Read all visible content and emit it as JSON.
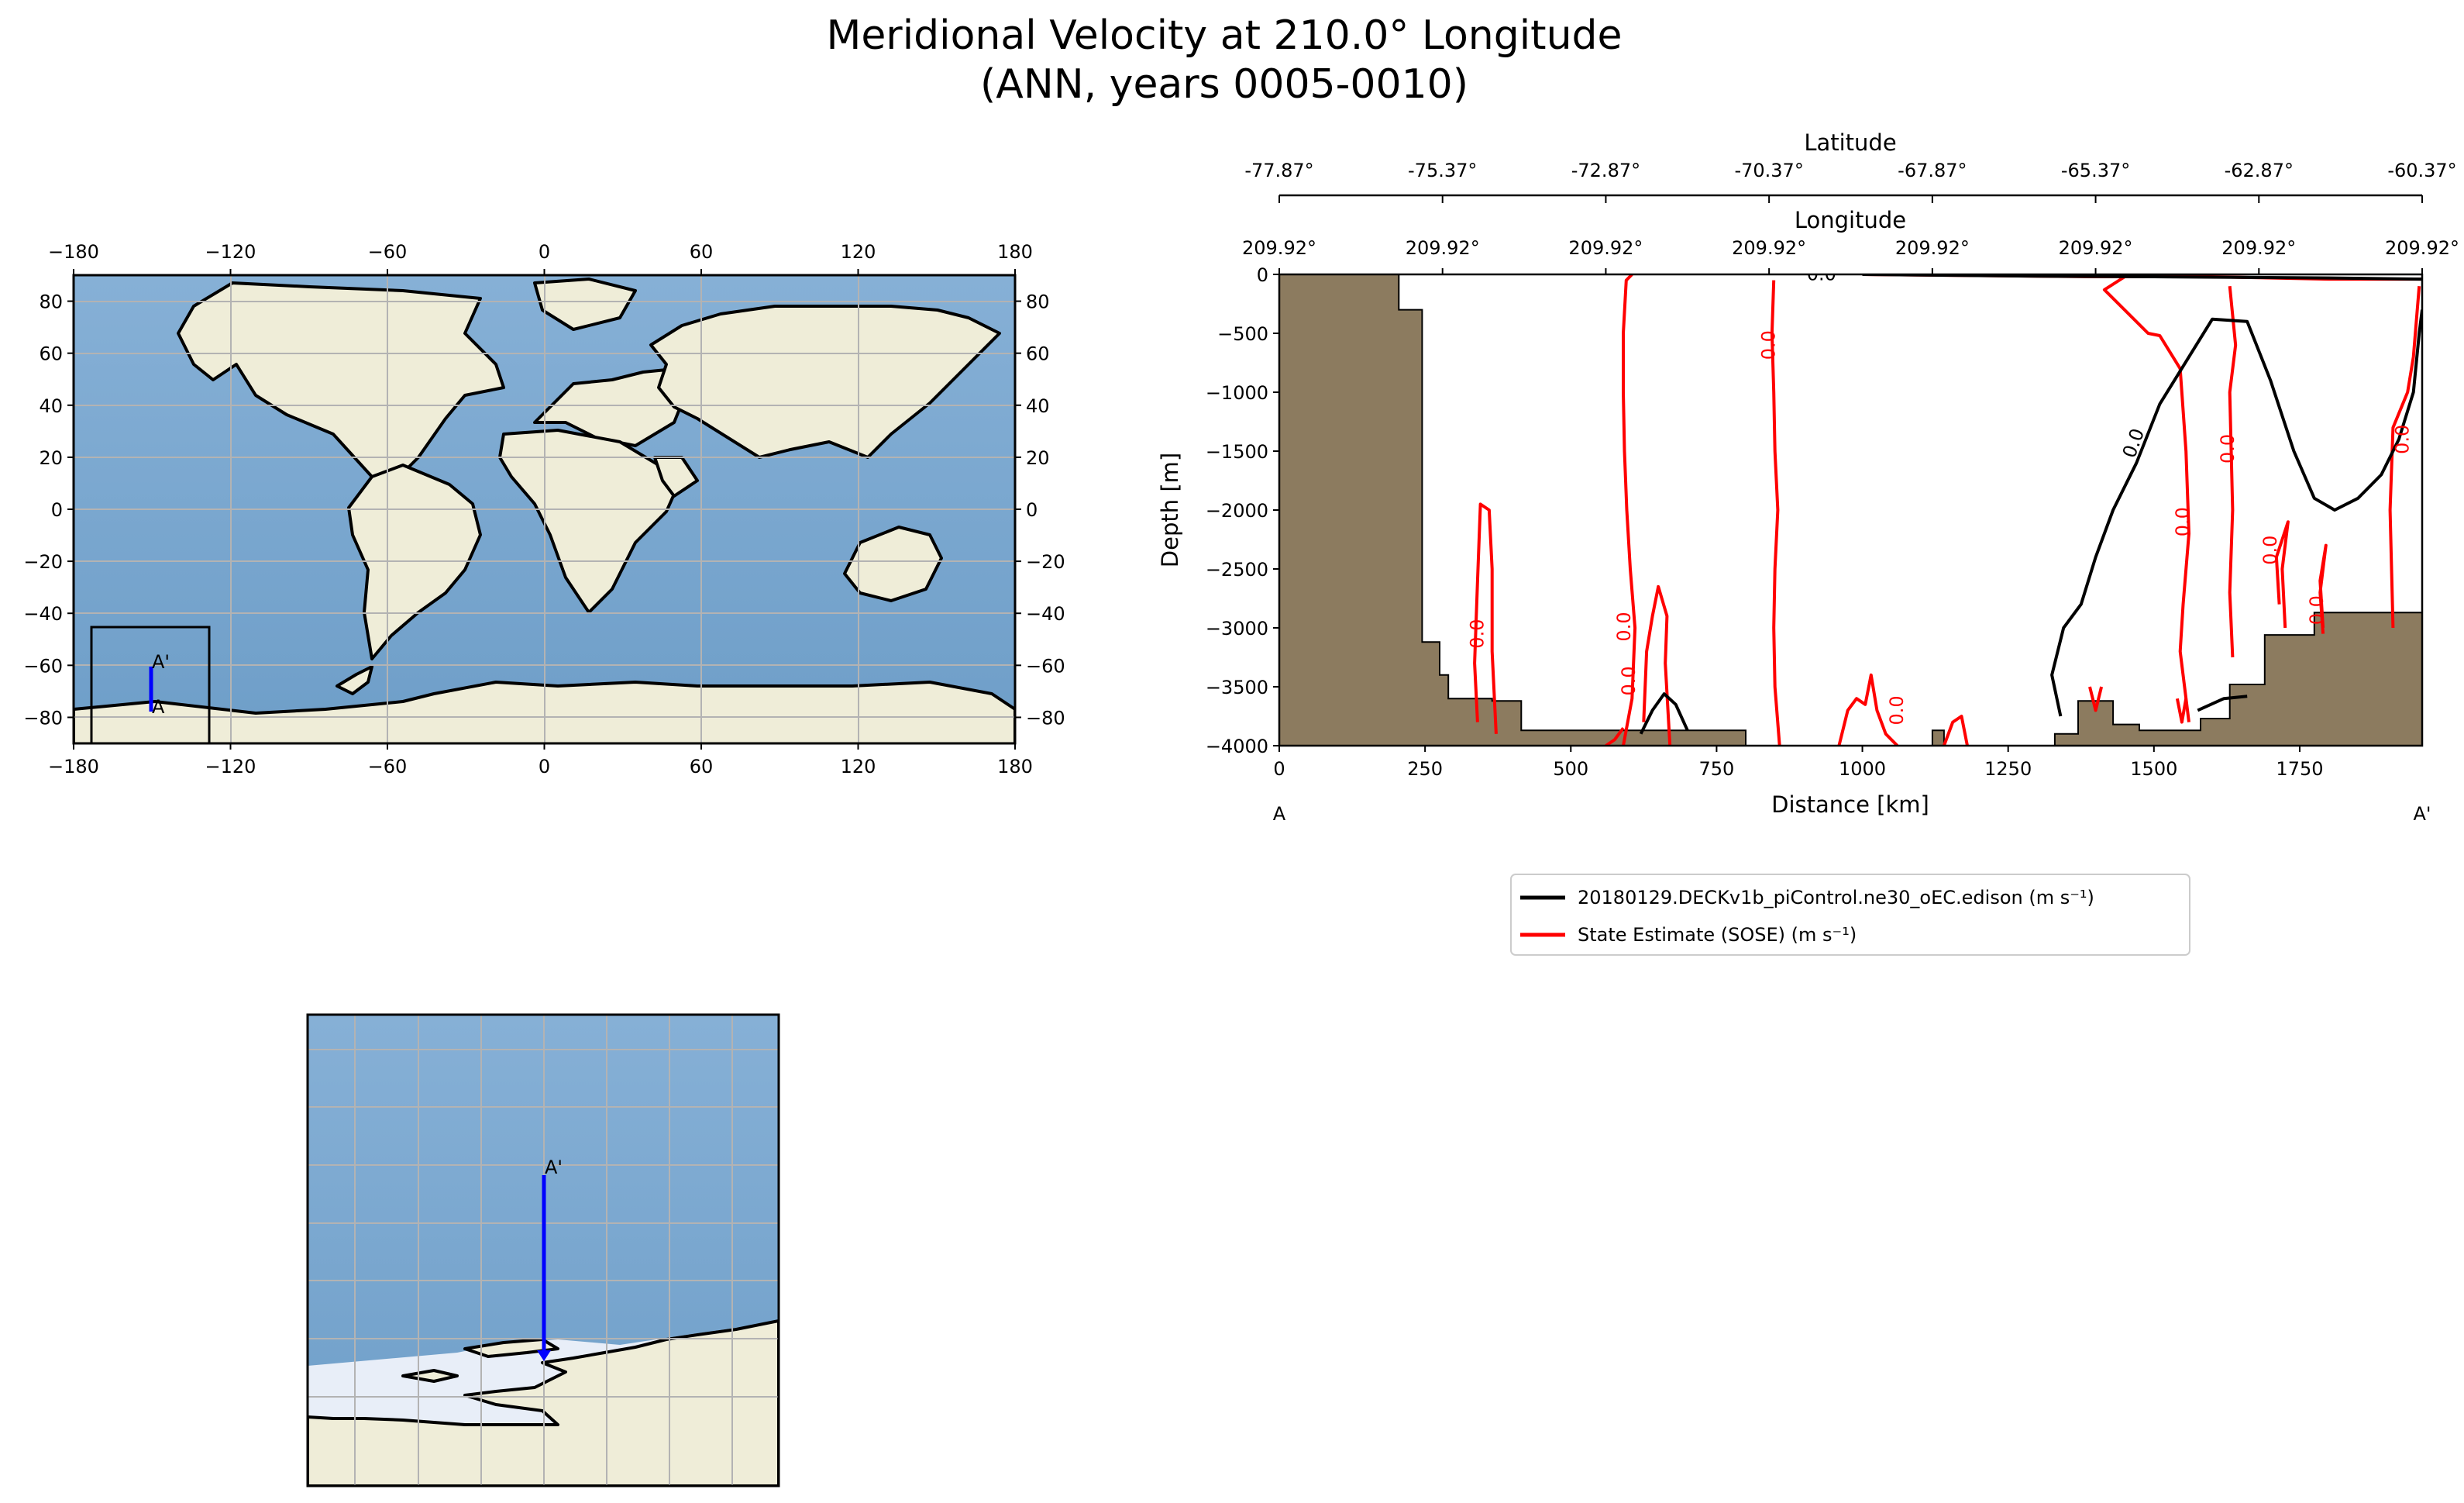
{
  "figure": {
    "title_line1": "Meridional Velocity at 210.0° Longitude",
    "title_line2": "(ANN, years 0005-0010)"
  },
  "chart_data": [
    {
      "type": "map",
      "panel": "global-map",
      "x_ticks": [
        "−180",
        "−120",
        "−60",
        "0",
        "60",
        "120",
        "180"
      ],
      "y_ticks": [
        "80",
        "60",
        "40",
        "20",
        "0",
        "−20",
        "−40",
        "−60",
        "−80"
      ],
      "lon_range": [
        -180,
        180
      ],
      "lat_range": [
        -90,
        90
      ],
      "transect_labels": [
        "A'",
        "A"
      ],
      "transect": {
        "lon": 210,
        "lat_start": -77.87,
        "lat_end": -60.37
      },
      "inset_box": {
        "lon": [
          -173,
          -127
        ],
        "lat": [
          -90,
          -45
        ]
      },
      "grid": true
    },
    {
      "type": "contour",
      "panel": "transect",
      "top_axis_1": {
        "label": "Latitude",
        "ticks": [
          "-77.87°",
          "-75.37°",
          "-72.87°",
          "-70.37°",
          "-67.87°",
          "-65.37°",
          "-62.87°",
          "-60.37°"
        ]
      },
      "top_axis_2": {
        "label": "Longitude",
        "ticks": [
          "209.92°",
          "209.92°",
          "209.92°",
          "209.92°",
          "209.92°",
          "209.92°",
          "209.92°",
          "209.92°"
        ]
      },
      "xlabel": "Distance [km]",
      "ylabel": "Depth [m]",
      "x_ticks": [
        "0",
        "250",
        "500",
        "750",
        "1000",
        "1250",
        "1500",
        "1750"
      ],
      "y_ticks": [
        "0",
        "−500",
        "−1000",
        "−1500",
        "−2000",
        "−2500",
        "−3000",
        "−3500",
        "−4000"
      ],
      "xlim": [
        0,
        1960
      ],
      "ylim": [
        -4000,
        0
      ],
      "endpoint_labels": [
        "A",
        "A'"
      ],
      "contour_label": "0.0",
      "series": [
        {
          "name": "20180129.DECKv1b_piControl.ne30_oEC.edison (m s⁻¹)",
          "color": "#000000"
        },
        {
          "name": "State Estimate (SOSE) (m s⁻¹)",
          "color": "#ff0000"
        }
      ],
      "legend_placement": "below",
      "bathymetry_color": "#8c7b5f"
    },
    {
      "type": "map",
      "panel": "zoom-map",
      "transect_labels": [
        "A'"
      ],
      "grid": true
    }
  ],
  "colors": {
    "ocean": "#7fa9cf",
    "land": "#efedd8",
    "ice": "#e8eef8",
    "grid": "#b3b3b3",
    "transect": "#0000ff",
    "model": "#000000",
    "obs": "#ff0000",
    "bathymetry": "#8c7b5f"
  }
}
